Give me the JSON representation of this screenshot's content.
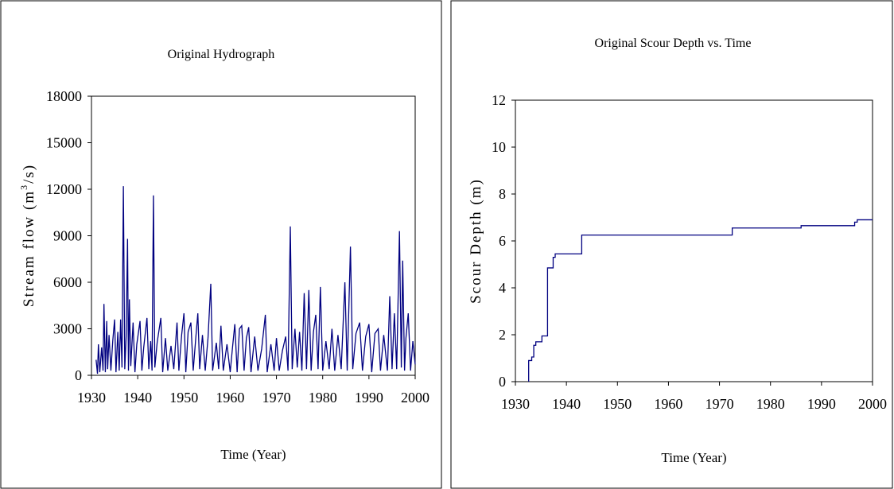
{
  "chart_data": [
    {
      "type": "line",
      "title": "Original Hydrograph",
      "xlabel": "Time (Year)",
      "ylabel_parts": [
        "Stream flow (m",
        "3",
        "/s)"
      ],
      "xlim": [
        1930,
        2000
      ],
      "xticks": [
        1930,
        1940,
        1950,
        1960,
        1970,
        1980,
        1990,
        2000
      ],
      "ylim": [
        0,
        18000
      ],
      "yticks": [
        0,
        3000,
        6000,
        9000,
        12000,
        15000,
        18000
      ],
      "series": [
        {
          "color": "#000080",
          "x": [
            1931.0,
            1931.3,
            1931.5,
            1931.8,
            1932.2,
            1932.5,
            1932.7,
            1933.0,
            1933.3,
            1933.5,
            1933.8,
            1934.2,
            1934.6,
            1935.0,
            1935.3,
            1935.7,
            1936.0,
            1936.3,
            1936.6,
            1936.9,
            1937.2,
            1937.5,
            1937.8,
            1938.0,
            1938.2,
            1938.5,
            1939.0,
            1939.4,
            1939.8,
            1940.5,
            1940.9,
            1941.3,
            1942.0,
            1942.4,
            1942.8,
            1943.1,
            1943.4,
            1943.7,
            1944.2,
            1945.0,
            1945.4,
            1946.0,
            1946.5,
            1947.2,
            1947.8,
            1948.5,
            1948.9,
            1949.5,
            1950.0,
            1950.4,
            1950.9,
            1951.5,
            1952.0,
            1952.5,
            1953.0,
            1953.4,
            1954.0,
            1954.6,
            1955.2,
            1955.8,
            1956.2,
            1957.0,
            1957.5,
            1958.0,
            1958.5,
            1959.3,
            1960.0,
            1960.5,
            1961.0,
            1961.5,
            1962.0,
            1962.5,
            1963.0,
            1963.5,
            1964.0,
            1964.5,
            1965.3,
            1966.0,
            1966.8,
            1967.6,
            1968.0,
            1968.8,
            1969.5,
            1970.0,
            1970.6,
            1971.3,
            1972.0,
            1972.5,
            1973.0,
            1973.4,
            1974.0,
            1974.5,
            1975.0,
            1975.5,
            1976.0,
            1976.5,
            1977.0,
            1977.5,
            1978.0,
            1978.5,
            1979.0,
            1979.5,
            1980.0,
            1980.7,
            1981.4,
            1982.0,
            1982.6,
            1983.3,
            1984.0,
            1984.8,
            1985.3,
            1986.0,
            1986.5,
            1987.2,
            1988.0,
            1988.6,
            1989.3,
            1990.0,
            1990.6,
            1991.3,
            1992.0,
            1992.5,
            1993.2,
            1994.0,
            1994.5,
            1995.0,
            1995.5,
            1996.0,
            1996.6,
            1997.0,
            1997.3,
            1997.7,
            1998.0,
            1998.5,
            1999.0,
            1999.5,
            2000.0
          ],
          "values": [
            1000,
            100,
            2000,
            200,
            1800,
            300,
            4600,
            200,
            3500,
            400,
            2600,
            300,
            2200,
            3600,
            200,
            2800,
            300,
            3600,
            500,
            12200,
            400,
            2500,
            8800,
            300,
            4900,
            600,
            3400,
            200,
            2000,
            3500,
            300,
            1800,
            3700,
            400,
            2200,
            300,
            11600,
            500,
            2100,
            3700,
            200,
            2400,
            300,
            1900,
            400,
            3400,
            300,
            2600,
            4000,
            200,
            2800,
            3400,
            300,
            2200,
            4000,
            400,
            2600,
            300,
            2400,
            5900,
            300,
            2100,
            400,
            3200,
            300,
            2000,
            200,
            1800,
            3300,
            200,
            3000,
            3200,
            300,
            2400,
            3100,
            200,
            2500,
            300,
            1700,
            3900,
            200,
            2000,
            300,
            2400,
            300,
            1600,
            2500,
            300,
            9600,
            400,
            3000,
            500,
            2800,
            300,
            5300,
            400,
            5500,
            300,
            2800,
            3900,
            400,
            5700,
            300,
            2200,
            400,
            3000,
            300,
            2600,
            400,
            6000,
            300,
            8300,
            400,
            2700,
            3400,
            300,
            2500,
            3300,
            200,
            2700,
            3000,
            300,
            2600,
            300,
            5100,
            400,
            4000,
            400,
            9300,
            500,
            7400,
            300,
            2400,
            4000,
            300,
            2200,
            700
          ]
        }
      ]
    },
    {
      "type": "line",
      "title": "Original Scour Depth vs. Time",
      "xlabel": "Time (Year)",
      "ylabel": "Scour Depth (m)",
      "xlim": [
        1930,
        2000
      ],
      "xticks": [
        1930,
        1940,
        1950,
        1960,
        1970,
        1980,
        1990,
        2000
      ],
      "ylim": [
        0,
        12
      ],
      "yticks": [
        0,
        2,
        4,
        6,
        8,
        10,
        12
      ],
      "series": [
        {
          "color": "#000080",
          "x": [
            1932.6,
            1932.6,
            1933.2,
            1933.2,
            1933.6,
            1933.6,
            1934.0,
            1934.0,
            1935.2,
            1935.2,
            1936.3,
            1936.3,
            1937.4,
            1937.4,
            1937.8,
            1937.8,
            1943.0,
            1943.0,
            1972.5,
            1972.5,
            1986.0,
            1986.0,
            1996.5,
            1996.5,
            1997.0,
            1997.0,
            2000.0
          ],
          "values": [
            0,
            0.9,
            0.9,
            1.05,
            1.05,
            1.55,
            1.55,
            1.7,
            1.7,
            1.95,
            1.95,
            4.85,
            4.85,
            5.3,
            5.3,
            5.45,
            5.45,
            6.25,
            6.25,
            6.55,
            6.55,
            6.65,
            6.65,
            6.8,
            6.8,
            6.9,
            6.9
          ]
        }
      ]
    }
  ]
}
